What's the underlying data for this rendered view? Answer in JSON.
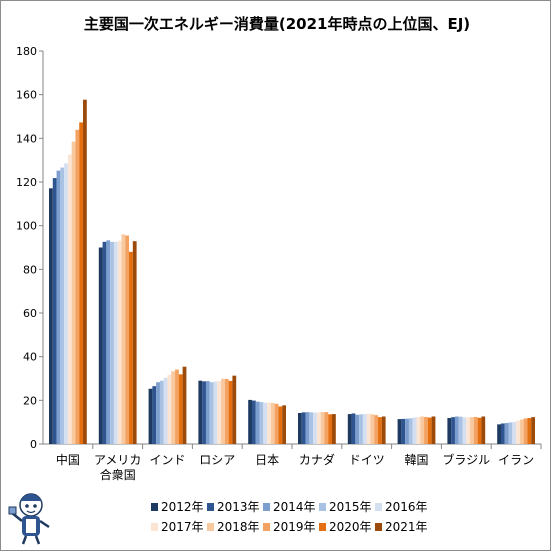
{
  "chart_data": {
    "type": "bar",
    "title": "主要国一次エネルギー消費量(2021年時点の上位国、EJ)",
    "xlabel": "",
    "ylabel": "",
    "ylim": [
      0,
      180
    ],
    "yticks": [
      0,
      20,
      40,
      60,
      80,
      100,
      120,
      140,
      160,
      180
    ],
    "grid": false,
    "legend_position": "bottom",
    "categories": [
      "中国",
      "アメリカ\n合衆国",
      "インド",
      "ロシア",
      "日本",
      "カナダ",
      "ドイツ",
      "韓国",
      "ブラジル",
      "イラン"
    ],
    "series": [
      {
        "name": "2012年",
        "color": "#1f3a60",
        "values": [
          117.1,
          90.0,
          25.3,
          29.0,
          20.2,
          14.2,
          13.7,
          11.4,
          11.9,
          9.0
        ]
      },
      {
        "name": "2013年",
        "color": "#2f5590",
        "values": [
          121.8,
          92.6,
          26.5,
          28.7,
          19.9,
          14.5,
          14.0,
          11.5,
          12.3,
          9.4
        ]
      },
      {
        "name": "2014年",
        "color": "#7d9fcf",
        "values": [
          125.2,
          93.3,
          28.3,
          28.8,
          19.4,
          14.6,
          13.4,
          11.6,
          12.6,
          9.6
        ]
      },
      {
        "name": "2015年",
        "color": "#a9c2e3",
        "values": [
          126.6,
          92.6,
          29.0,
          28.3,
          19.2,
          14.5,
          13.6,
          11.8,
          12.5,
          9.9
        ]
      },
      {
        "name": "2016年",
        "color": "#d4e0f1",
        "values": [
          128.5,
          92.6,
          30.3,
          28.6,
          18.9,
          14.4,
          13.8,
          12.2,
          12.2,
          10.1
        ]
      },
      {
        "name": "2017年",
        "color": "#fbe5d2",
        "values": [
          132.6,
          93.1,
          31.7,
          28.9,
          19.0,
          14.6,
          13.9,
          12.4,
          12.2,
          10.7
        ]
      },
      {
        "name": "2018年",
        "color": "#f8c89e",
        "values": [
          138.5,
          96.0,
          33.3,
          29.9,
          18.8,
          14.6,
          13.6,
          12.6,
          12.3,
          11.2
        ]
      },
      {
        "name": "2019年",
        "color": "#f4a261",
        "values": [
          143.9,
          95.5,
          34.1,
          29.8,
          18.4,
          14.6,
          13.2,
          12.4,
          12.4,
          11.7
        ]
      },
      {
        "name": "2020年",
        "color": "#e36f10",
        "values": [
          147.3,
          88.0,
          31.9,
          28.9,
          17.2,
          13.6,
          12.3,
          12.1,
          12.0,
          11.9
        ]
      },
      {
        "name": "2021年",
        "color": "#9c4a0a",
        "values": [
          157.7,
          92.9,
          35.4,
          31.3,
          17.7,
          13.7,
          12.6,
          12.6,
          12.6,
          12.3
        ]
      }
    ]
  }
}
